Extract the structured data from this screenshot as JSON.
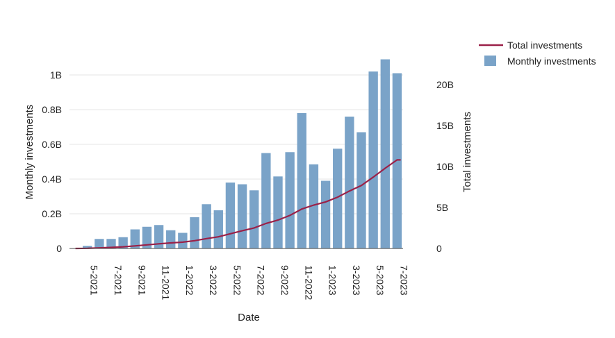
{
  "chart_data": {
    "type": "bar",
    "xlabel": "Date",
    "ylabel_left": "Monthly investments",
    "ylabel_right": "Total investments",
    "ylim_left": [
      0,
      1.0
    ],
    "ylim_right": [
      0,
      22.5
    ],
    "yticks_left": [
      {
        "value": 0,
        "label": "0"
      },
      {
        "value": 0.2,
        "label": "0.2B"
      },
      {
        "value": 0.4,
        "label": "0.4B"
      },
      {
        "value": 0.6,
        "label": "0.6B"
      },
      {
        "value": 0.8,
        "label": "0.8B"
      },
      {
        "value": 1.0,
        "label": "1B"
      }
    ],
    "yticks_right": [
      {
        "value": 0,
        "label": "0"
      },
      {
        "value": 5,
        "label": "5B"
      },
      {
        "value": 10,
        "label": "10B"
      },
      {
        "value": 15,
        "label": "15B"
      },
      {
        "value": 20,
        "label": "20B"
      }
    ],
    "categories": [
      "4-2021",
      "5-2021",
      "6-2021",
      "7-2021",
      "8-2021",
      "9-2021",
      "10-2021",
      "11-2021",
      "12-2021",
      "1-2022",
      "2-2022",
      "3-2022",
      "4-2022",
      "5-2022",
      "6-2022",
      "7-2022",
      "8-2022",
      "9-2022",
      "10-2022",
      "11-2022",
      "12-2022",
      "1-2023",
      "2-2023",
      "3-2023",
      "4-2023",
      "5-2023",
      "6-2023",
      "7-2023"
    ],
    "xtick_labels": [
      "5-2021",
      "7-2021",
      "9-2021",
      "11-2021",
      "1-2022",
      "3-2022",
      "5-2022",
      "7-2022",
      "9-2022",
      "11-2022",
      "1-2023",
      "3-2023",
      "5-2023",
      "7-2023"
    ],
    "grid": true,
    "legend_position": "top-right",
    "series": [
      {
        "name": "Monthly investments",
        "type": "bar",
        "axis": "left",
        "color": "#7aa3c8",
        "values": [
          0,
          0.015,
          0.055,
          0.055,
          0.065,
          0.11,
          0.125,
          0.135,
          0.105,
          0.09,
          0.18,
          0.255,
          0.22,
          0.38,
          0.37,
          0.335,
          0.55,
          0.415,
          0.555,
          0.78,
          0.485,
          0.39,
          0.575,
          0.76,
          0.67,
          1.02,
          1.09,
          1.01
        ]
      },
      {
        "name": "Total investments",
        "type": "line",
        "axis": "right",
        "color": "#9b2148",
        "values": [
          0,
          0.02,
          0.07,
          0.13,
          0.2,
          0.31,
          0.44,
          0.57,
          0.68,
          0.77,
          0.95,
          1.2,
          1.42,
          1.8,
          2.17,
          2.51,
          3.06,
          3.47,
          4.03,
          4.81,
          5.3,
          5.69,
          6.26,
          7.02,
          7.69,
          8.71,
          9.8,
          10.81
        ]
      }
    ]
  }
}
